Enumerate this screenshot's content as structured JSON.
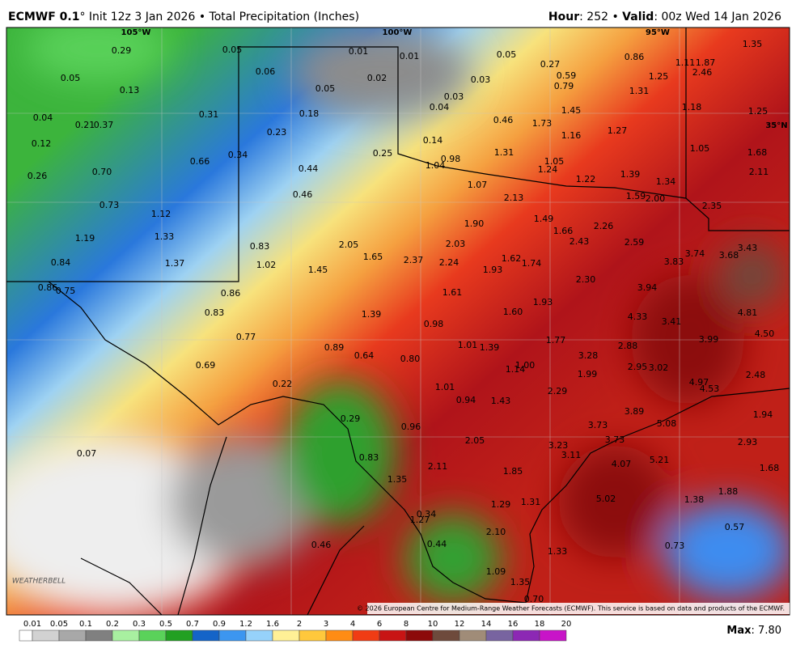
{
  "header": {
    "model": "ECMWF 0.1",
    "title_rest": "° Init 12z 3 Jan 2026 • Total Precipitation (Inches)",
    "hour_key": "Hour",
    "hour_rest": ": 252 • ",
    "valid_key": "Valid",
    "valid_rest": ": 00z Wed 14 Jan 2026"
  },
  "map": {
    "grid_labels": [
      "105°W",
      "100°W",
      "95°W",
      "35°N"
    ],
    "labels": [
      "0.29",
      "0.05",
      "0.13",
      "0.04",
      "0.21",
      "0.37",
      "0.12",
      "0.31",
      "0.05",
      "0.06",
      "0.01",
      "0.01",
      "0.02",
      "0.05",
      "0.18",
      "0.05",
      "0.03",
      "0.03",
      "0.04",
      "0.27",
      "0.59",
      "0.79",
      "0.86",
      "1.11",
      "1.87",
      "2.46",
      "1.35",
      "1.25",
      "1.31",
      "1.18",
      "1.25",
      "1.45",
      "0.46",
      "1.73",
      "1.16",
      "1.27",
      "0.23",
      "0.34",
      "0.66",
      "0.70",
      "0.26",
      "0.25",
      "0.14",
      "0.98",
      "1.04",
      "1.31",
      "1.05",
      "1.24",
      "1.22",
      "1.39",
      "1.34",
      "1.05",
      "1.68",
      "2.11",
      "0.44",
      "0.46",
      "1.07",
      "2.13",
      "1.59",
      "2.00",
      "2.35",
      "0.73",
      "1.12",
      "1.19",
      "1.33",
      "1.37",
      "0.84",
      "0.83",
      "1.02",
      "2.05",
      "1.65",
      "2.37",
      "2.03",
      "2.24",
      "1.90",
      "1.49",
      "1.66",
      "2.26",
      "2.43",
      "2.59",
      "3.43",
      "3.68",
      "3.74",
      "3.83",
      "1.45",
      "1.93",
      "1.62",
      "1.74",
      "2.30",
      "3.94",
      "0.86",
      "0.75",
      "0.86",
      "0.83",
      "1.61",
      "1.39",
      "1.60",
      "1.93",
      "4.33",
      "3.41",
      "4.81",
      "0.98",
      "4.50",
      "0.77",
      "0.89",
      "0.64",
      "0.80",
      "1.01",
      "1.39",
      "1.77",
      "2.88",
      "3.99",
      "3.28",
      "0.69",
      "1.14",
      "1.00",
      "1.99",
      "2.95",
      "3.02",
      "4.97",
      "4.53",
      "2.48",
      "0.22",
      "1.01",
      "2.29",
      "0.94",
      "1.43",
      "3.89",
      "0.29",
      "0.96",
      "5.08",
      "1.94",
      "3.73",
      "2.05",
      "3.23",
      "3.73",
      "2.93",
      "0.07",
      "0.83",
      "3.11",
      "4.07",
      "5.21",
      "2.11",
      "1.85",
      "1.68",
      "1.35",
      "1.88",
      "0.34",
      "1.29",
      "1.31",
      "5.02",
      "1.38",
      "1.27",
      "2.10",
      "0.57",
      "0.46",
      "0.44",
      "1.33",
      "0.73",
      "1.09",
      "1.35",
      "0.70"
    ],
    "credit": "© 2026 European Centre for Medium-Range Weather Forecasts (ECMWF). This service is based on data and products of the ECMWF.",
    "logo": "WEATHERBELL"
  },
  "legend": {
    "labels": [
      "0.01",
      "0.05",
      "0.1",
      "0.2",
      "0.3",
      "0.5",
      "0.7",
      "0.9",
      "1.2",
      "1.6",
      "2",
      "3",
      "4",
      "6",
      "8",
      "10",
      "12",
      "14",
      "16",
      "18",
      "20"
    ],
    "colors": [
      "#ffffff",
      "#d2d2d2",
      "#a8a8a8",
      "#808080",
      "#a8f0a0",
      "#5ad25a",
      "#22a022",
      "#1464c8",
      "#3c96f0",
      "#96d2fa",
      "#fff096",
      "#ffc83c",
      "#ff8c14",
      "#f03c14",
      "#c81414",
      "#8c0a0a",
      "#6e4a3c",
      "#a08c78",
      "#7864a0",
      "#8c28b4",
      "#c814c8"
    ],
    "max_key": "Max",
    "max_rest": ": 7.80"
  }
}
